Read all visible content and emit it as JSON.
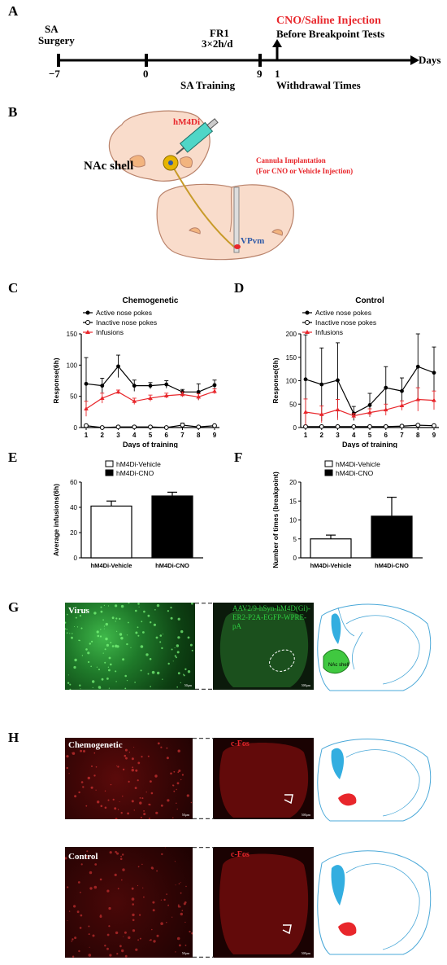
{
  "panels": {
    "A": {
      "letter": "A",
      "top_left_label_line1": "SA",
      "top_left_label_line2": "Surgery",
      "fr_label_line1": "FR1",
      "fr_label_line2": "3×2h/d",
      "injection_line1": "CNO/Saline Injection",
      "injection_line2": "Before Breakpoint Tests",
      "days": "Days",
      "tick_labels": [
        "−7",
        "0",
        "9",
        "1"
      ],
      "sa_training": "SA Training",
      "withdrawal": "Withdrawal Times",
      "colors": {
        "injection": "#e8262b",
        "line": "#000000"
      }
    },
    "B": {
      "letter": "B",
      "hm4di": "hM4Di",
      "nac_shell": "NAc shell",
      "cannula_line1": "Cannula Implantation",
      "cannula_line2": "(For CNO or Vehicle Injection)",
      "vpvm": "VPvm",
      "colors": {
        "brain": "#f9dccb",
        "brain_stroke": "#b9826a",
        "red": "#e8262b",
        "blue": "#2e5aa8",
        "axon": "#c89b2a",
        "syringe": "#4fd6c7"
      }
    },
    "C": {
      "letter": "C",
      "title": "Chemogenetic",
      "ylabel": "Response(6h)",
      "xlabel": "Days of training",
      "legend": [
        "Active nose pokes",
        "Inactive nose pokes",
        "Infusions"
      ],
      "yticks": [
        "0",
        "50",
        "100",
        "150"
      ],
      "xticks": [
        "1",
        "2",
        "3",
        "4",
        "5",
        "6",
        "7",
        "8",
        "9"
      ]
    },
    "D": {
      "letter": "D",
      "title": "Control",
      "ylabel": "Response(6h)",
      "xlabel": "Days of training",
      "legend": [
        "Active nose pokes",
        "Inactive nose pokes",
        "Infusions"
      ],
      "yticks": [
        "0",
        "50",
        "100",
        "150",
        "200"
      ],
      "xticks": [
        "1",
        "2",
        "3",
        "4",
        "5",
        "6",
        "7",
        "8",
        "9"
      ]
    },
    "E": {
      "letter": "E",
      "ylabel": "Average infusions(6h)",
      "legend": [
        "hM4Di-Vehicle",
        "hM4Di-CNO"
      ],
      "categories": [
        "hM4Di-Vehicle",
        "hM4Di-CNO"
      ],
      "yticks": [
        "0",
        "20",
        "40",
        "60"
      ]
    },
    "F": {
      "letter": "F",
      "ylabel": "Number of times (breakpoint)",
      "legend": [
        "hM4Di-Vehicle",
        "hM4Di-CNO"
      ],
      "categories": [
        "hM4Di-Vehicle",
        "hM4Di-CNO"
      ],
      "yticks": [
        "0",
        "5",
        "10",
        "15",
        "20"
      ]
    },
    "G": {
      "letter": "G",
      "virus": "Virus",
      "construct": "AAV2/9-hSyn-hM4D(Gi)-ER2-P2A-EGFP-WPRE-pA",
      "nac_label": "NAc shell",
      "scale1": "50μm",
      "scale2": "500μm"
    },
    "H": {
      "letter": "H",
      "chemogenetic": "Chemogenetic",
      "control": "Control",
      "cfos": "c-Fos",
      "scale1": "50μm",
      "scale2": "500μm"
    }
  },
  "chart_data": [
    {
      "type": "line",
      "title": "Chemogenetic",
      "xlabel": "Days of training",
      "ylabel": "Response(6h)",
      "x": [
        1,
        2,
        3,
        4,
        5,
        6,
        7,
        8,
        9
      ],
      "ylim": [
        0,
        150
      ],
      "series": [
        {
          "name": "Active nose pokes",
          "values": [
            70,
            67,
            98,
            67,
            67,
            69,
            57,
            57,
            68
          ],
          "err": [
            42,
            12,
            18,
            9,
            5,
            6,
            4,
            13,
            8
          ],
          "color": "#000000"
        },
        {
          "name": "Inactive nose pokes",
          "values": [
            3,
            0,
            1,
            1,
            1,
            0,
            4,
            1,
            3
          ],
          "err": [
            2,
            1,
            1,
            1,
            1,
            1,
            3,
            1,
            1
          ],
          "color": "#000000"
        },
        {
          "name": "Infusions",
          "values": [
            30,
            47,
            57,
            42,
            47,
            51,
            53,
            49,
            58
          ],
          "err": [
            12,
            8,
            3,
            5,
            5,
            4,
            4,
            5,
            4
          ],
          "color": "#e8262b"
        }
      ]
    },
    {
      "type": "line",
      "title": "Control",
      "xlabel": "Days of training",
      "ylabel": "Response(6h)",
      "x": [
        1,
        2,
        3,
        4,
        5,
        6,
        7,
        8,
        9
      ],
      "ylim": [
        0,
        200
      ],
      "series": [
        {
          "name": "Active nose pokes",
          "values": [
            103,
            92,
            101,
            30,
            48,
            85,
            78,
            130,
            117
          ],
          "err": [
            95,
            78,
            80,
            15,
            25,
            45,
            28,
            70,
            55
          ],
          "color": "#000000"
        },
        {
          "name": "Inactive nose pokes",
          "values": [
            2,
            2,
            2,
            2,
            2,
            2,
            3,
            5,
            4
          ],
          "err": [
            1,
            1,
            1,
            1,
            1,
            1,
            2,
            2,
            1
          ],
          "color": "#000000"
        },
        {
          "name": "Infusions",
          "values": [
            33,
            28,
            38,
            25,
            32,
            38,
            47,
            60,
            58
          ],
          "err": [
            28,
            18,
            22,
            5,
            8,
            12,
            10,
            25,
            20
          ],
          "color": "#e8262b"
        }
      ]
    },
    {
      "type": "bar",
      "ylabel": "Average infusions(6h)",
      "categories": [
        "hM4Di-Vehicle",
        "hM4Di-CNO"
      ],
      "values": [
        41,
        49
      ],
      "err": [
        4,
        3
      ],
      "ylim": [
        0,
        60
      ]
    },
    {
      "type": "bar",
      "ylabel": "Number of times (breakpoint)",
      "categories": [
        "hM4Di-Vehicle",
        "hM4Di-CNO"
      ],
      "values": [
        5,
        11
      ],
      "err": [
        1,
        5
      ],
      "ylim": [
        0,
        20
      ]
    }
  ]
}
